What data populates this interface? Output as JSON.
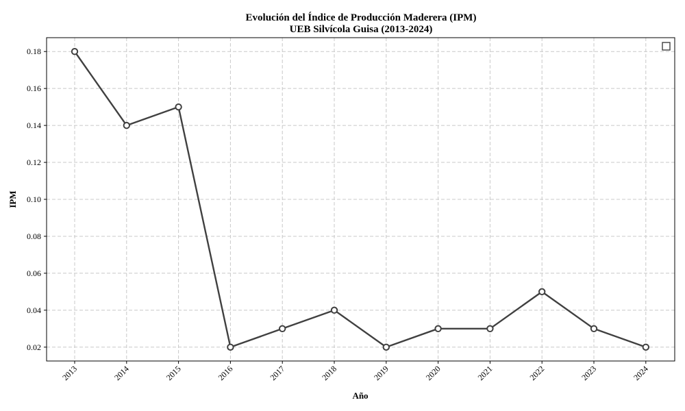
{
  "chart_data": {
    "type": "line",
    "title": "Evolución del Índice de Producción Maderera (IPM)",
    "subtitle": "UEB Silvícola Guisa (2013-2024)",
    "xlabel": "Año",
    "ylabel": "IPM",
    "x": [
      "2013",
      "2014",
      "2015",
      "2016",
      "2017",
      "2018",
      "2019",
      "2020",
      "2021",
      "2022",
      "2023",
      "2024"
    ],
    "series": [
      {
        "values": [
          0.18,
          0.14,
          0.15,
          0.02,
          0.03,
          0.04,
          0.02,
          0.03,
          0.03,
          0.05,
          0.03,
          0.02
        ]
      }
    ],
    "yticks": [
      "0.02",
      "0.04",
      "0.06",
      "0.08",
      "0.10",
      "0.12",
      "0.14",
      "0.16",
      "0.18"
    ],
    "ylim": [
      0.0125,
      0.1875
    ],
    "grid": true,
    "legend_placement": "top-right",
    "colors": {
      "line": "#404040",
      "marker_fill": "#ffffff",
      "grid": "#c8c8c8"
    }
  }
}
